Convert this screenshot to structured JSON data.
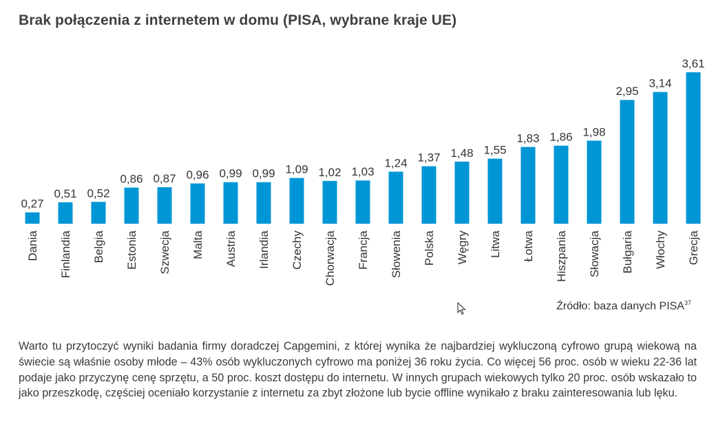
{
  "title": "Brak połączenia z internetem w domu (PISA, wybrane kraje UE)",
  "source": {
    "text": "Źródło: baza danych PISA",
    "footnote": "37"
  },
  "body_text": "Warto tu przytoczyć wyniki badania firmy doradczej Capgemini, z której wynika że najbardziej wykluczoną cyfrowo grupą wiekową na świecie są właśnie osoby młode – 43% osób wykluczonych cyfrowo ma poniżej 36 roku życia. Co więcej 56 proc. osób w wieku 22-36 lat podaje jako przyczynę cenę sprzętu, a 50 proc. koszt dostępu do internetu. W innych grupach wiekowych tylko 20 proc. osób wskazało to jako przeszkodę, częściej oceniało korzystanie z internetu za zbyt złożone lub bycie offline wynikało z braku zainteresowania lub lęku.",
  "colors": {
    "bar": "#0096D6",
    "text": "#333333"
  },
  "chart_data": {
    "type": "bar",
    "title": "Brak połączenia z internetem w domu (PISA, wybrane kraje UE)",
    "categories": [
      "Dania",
      "Finlandia",
      "Belgia",
      "Estonia",
      "Szwecja",
      "Malta",
      "Austria",
      "Irlandia",
      "Czechy",
      "Chorwacja",
      "Francja",
      "Słowenia",
      "Polska",
      "Węgry",
      "Litwa",
      "Łotwa",
      "Hiszpania",
      "Słowacja",
      "Bułgaria",
      "Włochy",
      "Grecja"
    ],
    "value_labels": [
      "0,27",
      "0,51",
      "0,52",
      "0,86",
      "0,87",
      "0,96",
      "0,99",
      "0,99",
      "1,09",
      "1,02",
      "1,03",
      "1,24",
      "1,37",
      "1,48",
      "1,55",
      "1,83",
      "1,86",
      "1,98",
      "2,95",
      "3,14",
      "3,61"
    ],
    "values": [
      0.27,
      0.51,
      0.52,
      0.86,
      0.87,
      0.96,
      0.99,
      0.99,
      1.09,
      1.02,
      1.03,
      1.24,
      1.37,
      1.48,
      1.55,
      1.83,
      1.86,
      1.98,
      2.95,
      3.14,
      3.61
    ],
    "ylim": [
      0,
      3.61
    ],
    "grid": false,
    "legend": "none"
  }
}
